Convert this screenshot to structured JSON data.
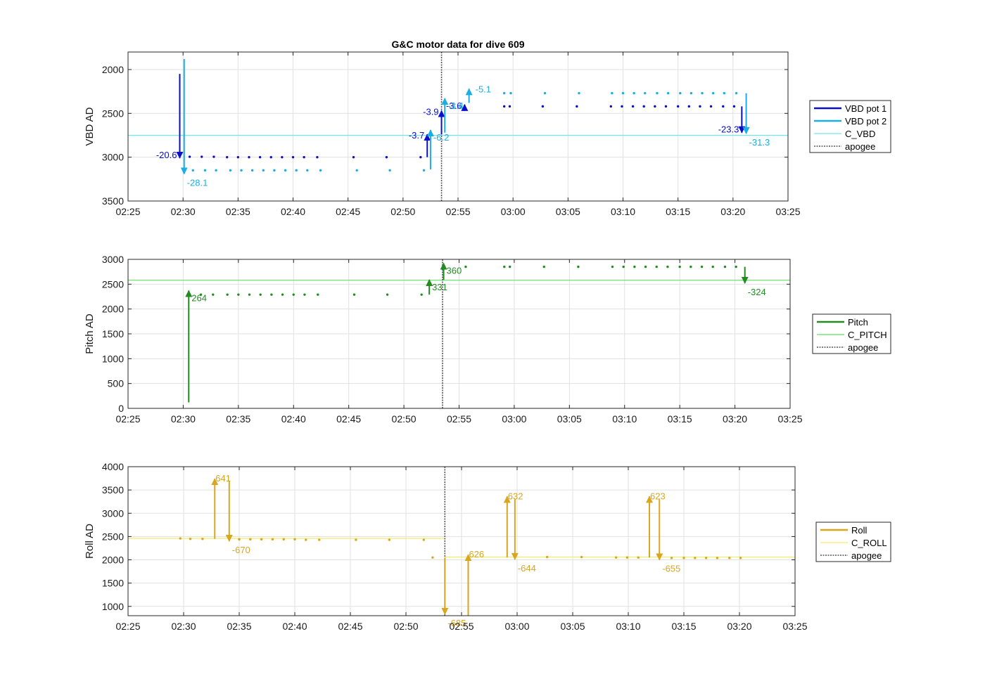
{
  "figure": {
    "title": "G&C motor data for dive 609"
  },
  "colors": {
    "vbd_pot1": "#0a10c8",
    "vbd_pot2": "#1aaee6",
    "c_vbd": "#6fe6e6",
    "pitch": "#228b22",
    "c_pitch": "#5ee05e",
    "roll": "#daa520",
    "c_roll": "#f2ec6a",
    "apogee": "#555555",
    "grid": "#e1e1e1",
    "axis": "#262626"
  },
  "chart_data": [
    {
      "id": "vbd",
      "type": "scatter",
      "title": "G&C motor data for dive 609",
      "xlabel": "",
      "ylabel": "VBD AD",
      "xlim": [
        "02:25",
        "03:25"
      ],
      "ylim": [
        3500,
        1800
      ],
      "y_reversed": true,
      "xticks": [
        "02:25",
        "02:30",
        "02:35",
        "02:40",
        "02:45",
        "02:50",
        "02:55",
        "03:00",
        "03:05",
        "03:10",
        "03:15",
        "03:20",
        "03:25"
      ],
      "yticks": [
        2000,
        2500,
        3000,
        3500
      ],
      "grid": true,
      "legend_position": "right",
      "legend": [
        "VBD pot 1",
        "VBD pot 2",
        "C_VBD",
        "apogee"
      ],
      "reference_line": {
        "name": "C_VBD",
        "y": 2750,
        "color": "#6fe6e6"
      },
      "apogee": "02:53.5",
      "series": [
        {
          "name": "VBD pot 1",
          "color": "#0a10c8",
          "points": [
            [
              "02:30.6",
              2995
            ],
            [
              "02:31.7",
              2995
            ],
            [
              "02:32.8",
              2995
            ],
            [
              "02:34.0",
              3000
            ],
            [
              "02:35.0",
              3000
            ],
            [
              "02:36.0",
              3000
            ],
            [
              "02:37.0",
              3000
            ],
            [
              "02:38.0",
              3000
            ],
            [
              "02:39.0",
              3000
            ],
            [
              "02:40.0",
              3000
            ],
            [
              "02:41.0",
              3000
            ],
            [
              "02:42.2",
              3000
            ],
            [
              "02:45.5",
              3000
            ],
            [
              "02:48.5",
              3000
            ],
            [
              "02:51.6",
              3000
            ],
            [
              "02:59.2",
              2420
            ],
            [
              "02:59.7",
              2420
            ],
            [
              "03:02.7",
              2420
            ],
            [
              "03:05.8",
              2420
            ],
            [
              "03:08.9",
              2420
            ],
            [
              "03:09.9",
              2420
            ],
            [
              "03:10.9",
              2420
            ],
            [
              "03:11.9",
              2420
            ],
            [
              "03:12.9",
              2420
            ],
            [
              "03:13.9",
              2420
            ],
            [
              "03:15.0",
              2420
            ],
            [
              "03:16.0",
              2420
            ],
            [
              "03:17.0",
              2420
            ],
            [
              "03:18.0",
              2420
            ],
            [
              "03:19.1",
              2420
            ],
            [
              "03:20.1",
              2420
            ]
          ],
          "arrows": [
            {
              "x": "02:29.7",
              "y_from": 2050,
              "y_to": 3010,
              "label": "-20.6",
              "label_side": "left"
            },
            {
              "x": "02:52.2",
              "y_from": 3000,
              "y_to": 2740,
              "label": "-3.7",
              "label_side": "left"
            },
            {
              "x": "02:53.5",
              "y_from": 2740,
              "y_to": 2470,
              "label": "-3.9",
              "label_side": "left"
            },
            {
              "x": "02:55.6",
              "y_from": 2470,
              "y_to": 2400,
              "label": "-3.6",
              "label_side": "left"
            },
            {
              "x": "03:20.8",
              "y_from": 2420,
              "y_to": 2720,
              "label": "-23.3",
              "label_side": "left"
            }
          ]
        },
        {
          "name": "VBD pot 2",
          "color": "#1aaee6",
          "points": [
            [
              "02:30.9",
              3150
            ],
            [
              "02:32.0",
              3150
            ],
            [
              "02:33.0",
              3150
            ],
            [
              "02:34.3",
              3150
            ],
            [
              "02:35.3",
              3150
            ],
            [
              "02:36.3",
              3150
            ],
            [
              "02:37.3",
              3150
            ],
            [
              "02:38.3",
              3150
            ],
            [
              "02:39.3",
              3150
            ],
            [
              "02:40.3",
              3150
            ],
            [
              "02:41.3",
              3150
            ],
            [
              "02:42.5",
              3150
            ],
            [
              "02:45.8",
              3150
            ],
            [
              "02:48.8",
              3150
            ],
            [
              "02:51.9",
              3150
            ],
            [
              "02:59.2",
              2270
            ],
            [
              "02:59.8",
              2270
            ],
            [
              "03:02.9",
              2270
            ],
            [
              "03:06.0",
              2270
            ],
            [
              "03:09.0",
              2270
            ],
            [
              "03:10.0",
              2270
            ],
            [
              "03:11.0",
              2270
            ],
            [
              "03:12.0",
              2270
            ],
            [
              "03:13.1",
              2270
            ],
            [
              "03:14.1",
              2270
            ],
            [
              "03:15.2",
              2270
            ],
            [
              "03:16.2",
              2270
            ],
            [
              "03:17.2",
              2270
            ],
            [
              "03:18.2",
              2270
            ],
            [
              "03:19.2",
              2270
            ],
            [
              "03:20.3",
              2270
            ]
          ],
          "arrows": [
            {
              "x": "02:30.1",
              "y_from": 1880,
              "y_to": 3190,
              "label": "-28.1",
              "label_side": "right-below"
            },
            {
              "x": "02:52.5",
              "y_from": 3140,
              "y_to": 2690,
              "label": "-6.2",
              "label_side": "right-below"
            },
            {
              "x": "02:53.8",
              "y_from": 2720,
              "y_to": 2330,
              "label": "-3.4",
              "label_side": "right-below"
            },
            {
              "x": "02:56.0",
              "y_from": 2380,
              "y_to": 2220,
              "label": "-5.1",
              "label_side": "right"
            },
            {
              "x": "03:21.2",
              "y_from": 2270,
              "y_to": 2730,
              "label": "-31.3",
              "label_side": "right-below"
            }
          ]
        }
      ]
    },
    {
      "id": "pitch",
      "type": "scatter",
      "xlabel": "",
      "ylabel": "Pitch AD",
      "xlim": [
        "02:25",
        "03:25"
      ],
      "ylim": [
        0,
        3000
      ],
      "xticks": [
        "02:25",
        "02:30",
        "02:35",
        "02:40",
        "02:45",
        "02:50",
        "02:55",
        "03:00",
        "03:05",
        "03:10",
        "03:15",
        "03:20",
        "03:25"
      ],
      "yticks": [
        0,
        500,
        1000,
        1500,
        2000,
        2500,
        3000
      ],
      "grid": true,
      "legend_position": "right",
      "legend": [
        "Pitch",
        "C_PITCH",
        "apogee"
      ],
      "reference_line": {
        "name": "C_PITCH",
        "y": 2580,
        "color": "#5ee05e"
      },
      "apogee": "02:53.5",
      "series": [
        {
          "name": "Pitch",
          "color": "#228b22",
          "points": [
            [
              "02:31.6",
              2290
            ],
            [
              "02:32.7",
              2290
            ],
            [
              "02:34.0",
              2290
            ],
            [
              "02:35.0",
              2290
            ],
            [
              "02:36.0",
              2290
            ],
            [
              "02:37.0",
              2290
            ],
            [
              "02:38.0",
              2290
            ],
            [
              "02:39.0",
              2290
            ],
            [
              "02:40.0",
              2290
            ],
            [
              "02:41.0",
              2290
            ],
            [
              "02:42.2",
              2290
            ],
            [
              "02:45.5",
              2290
            ],
            [
              "02:48.5",
              2290
            ],
            [
              "02:51.6",
              2290
            ],
            [
              "02:55.6",
              2850
            ],
            [
              "02:59.1",
              2850
            ],
            [
              "02:59.6",
              2850
            ],
            [
              "03:02.7",
              2850
            ],
            [
              "03:05.8",
              2850
            ],
            [
              "03:08.9",
              2850
            ],
            [
              "03:09.9",
              2850
            ],
            [
              "03:10.9",
              2850
            ],
            [
              "03:11.9",
              2850
            ],
            [
              "03:12.9",
              2850
            ],
            [
              "03:13.9",
              2850
            ],
            [
              "03:15.0",
              2850
            ],
            [
              "03:16.0",
              2850
            ],
            [
              "03:17.0",
              2850
            ],
            [
              "03:18.0",
              2850
            ],
            [
              "03:19.1",
              2850
            ],
            [
              "03:20.1",
              2850
            ]
          ],
          "arrows": [
            {
              "x": "02:30.5",
              "y_from": 120,
              "y_to": 2370,
              "label": "264",
              "label_side": "right-below"
            },
            {
              "x": "02:52.3",
              "y_from": 2290,
              "y_to": 2590,
              "label": "331",
              "label_side": "right-below"
            },
            {
              "x": "02:53.6",
              "y_from": 2590,
              "y_to": 2920,
              "label": "360",
              "label_side": "right-below"
            },
            {
              "x": "03:20.9",
              "y_from": 2850,
              "y_to": 2520,
              "label": "-324",
              "label_side": "right-below"
            }
          ]
        }
      ]
    },
    {
      "id": "roll",
      "type": "scatter",
      "xlabel": "",
      "ylabel": "Roll AD",
      "xlim": [
        "02:25",
        "03:25"
      ],
      "ylim": [
        800,
        4000
      ],
      "xticks": [
        "02:25",
        "02:30",
        "02:35",
        "02:40",
        "02:45",
        "02:50",
        "02:55",
        "03:00",
        "03:05",
        "03:10",
        "03:15",
        "03:20",
        "03:25"
      ],
      "yticks": [
        1000,
        1500,
        2000,
        2500,
        3000,
        3500,
        4000
      ],
      "grid": true,
      "legend_position": "right",
      "legend": [
        "Roll",
        "C_ROLL",
        "apogee"
      ],
      "reference_segments": [
        {
          "name": "C_ROLL",
          "x_from": "02:25",
          "x_to": "02:53.5",
          "y": 2460
        },
        {
          "name": "C_ROLL",
          "x_from": "02:53.5",
          "x_to": "03:25",
          "y": 2060
        }
      ],
      "apogee": "02:53.5",
      "series": [
        {
          "name": "Roll",
          "color": "#daa520",
          "points": [
            [
              "02:29.7",
              2460
            ],
            [
              "02:30.6",
              2450
            ],
            [
              "02:31.7",
              2450
            ],
            [
              "02:35.0",
              2440
            ],
            [
              "02:36.0",
              2440
            ],
            [
              "02:37.0",
              2440
            ],
            [
              "02:38.0",
              2440
            ],
            [
              "02:39.0",
              2440
            ],
            [
              "02:40.0",
              2440
            ],
            [
              "02:41.0",
              2430
            ],
            [
              "02:42.2",
              2430
            ],
            [
              "02:45.5",
              2430
            ],
            [
              "02:48.5",
              2430
            ],
            [
              "02:51.6",
              2430
            ],
            [
              "02:52.4",
              2050
            ],
            [
              "03:02.7",
              2060
            ],
            [
              "03:05.8",
              2060
            ],
            [
              "03:08.9",
              2050
            ],
            [
              "03:09.9",
              2050
            ],
            [
              "03:10.9",
              2050
            ],
            [
              "03:13.9",
              2040
            ],
            [
              "03:15.0",
              2040
            ],
            [
              "03:16.0",
              2040
            ],
            [
              "03:17.0",
              2040
            ],
            [
              "03:18.0",
              2040
            ],
            [
              "03:19.1",
              2040
            ],
            [
              "03:20.1",
              2040
            ]
          ],
          "arrows": [
            {
              "x": "02:32.8",
              "y_from": 2450,
              "y_to": 3740,
              "label": "641",
              "label_side": "right-above"
            },
            {
              "x": "02:34.1",
              "y_from": 3700,
              "y_to": 2400,
              "label": "-670",
              "label_side": "right-below"
            },
            {
              "x": "02:53.5",
              "y_from": 2050,
              "y_to": 830,
              "label": "-685",
              "label_side": "right-below"
            },
            {
              "x": "02:55.6",
              "y_from": 800,
              "y_to": 2110,
              "label": "626",
              "label_side": "right-above"
            },
            {
              "x": "02:59.1",
              "y_from": 2050,
              "y_to": 3360,
              "label": "632",
              "label_side": "right-above"
            },
            {
              "x": "02:59.8",
              "y_from": 3300,
              "y_to": 2010,
              "label": "-644",
              "label_side": "right-below"
            },
            {
              "x": "03:11.9",
              "y_from": 2050,
              "y_to": 3360,
              "label": "623",
              "label_side": "right-above"
            },
            {
              "x": "03:12.8",
              "y_from": 3300,
              "y_to": 2000,
              "label": "-655",
              "label_side": "right-below"
            }
          ]
        }
      ]
    }
  ]
}
